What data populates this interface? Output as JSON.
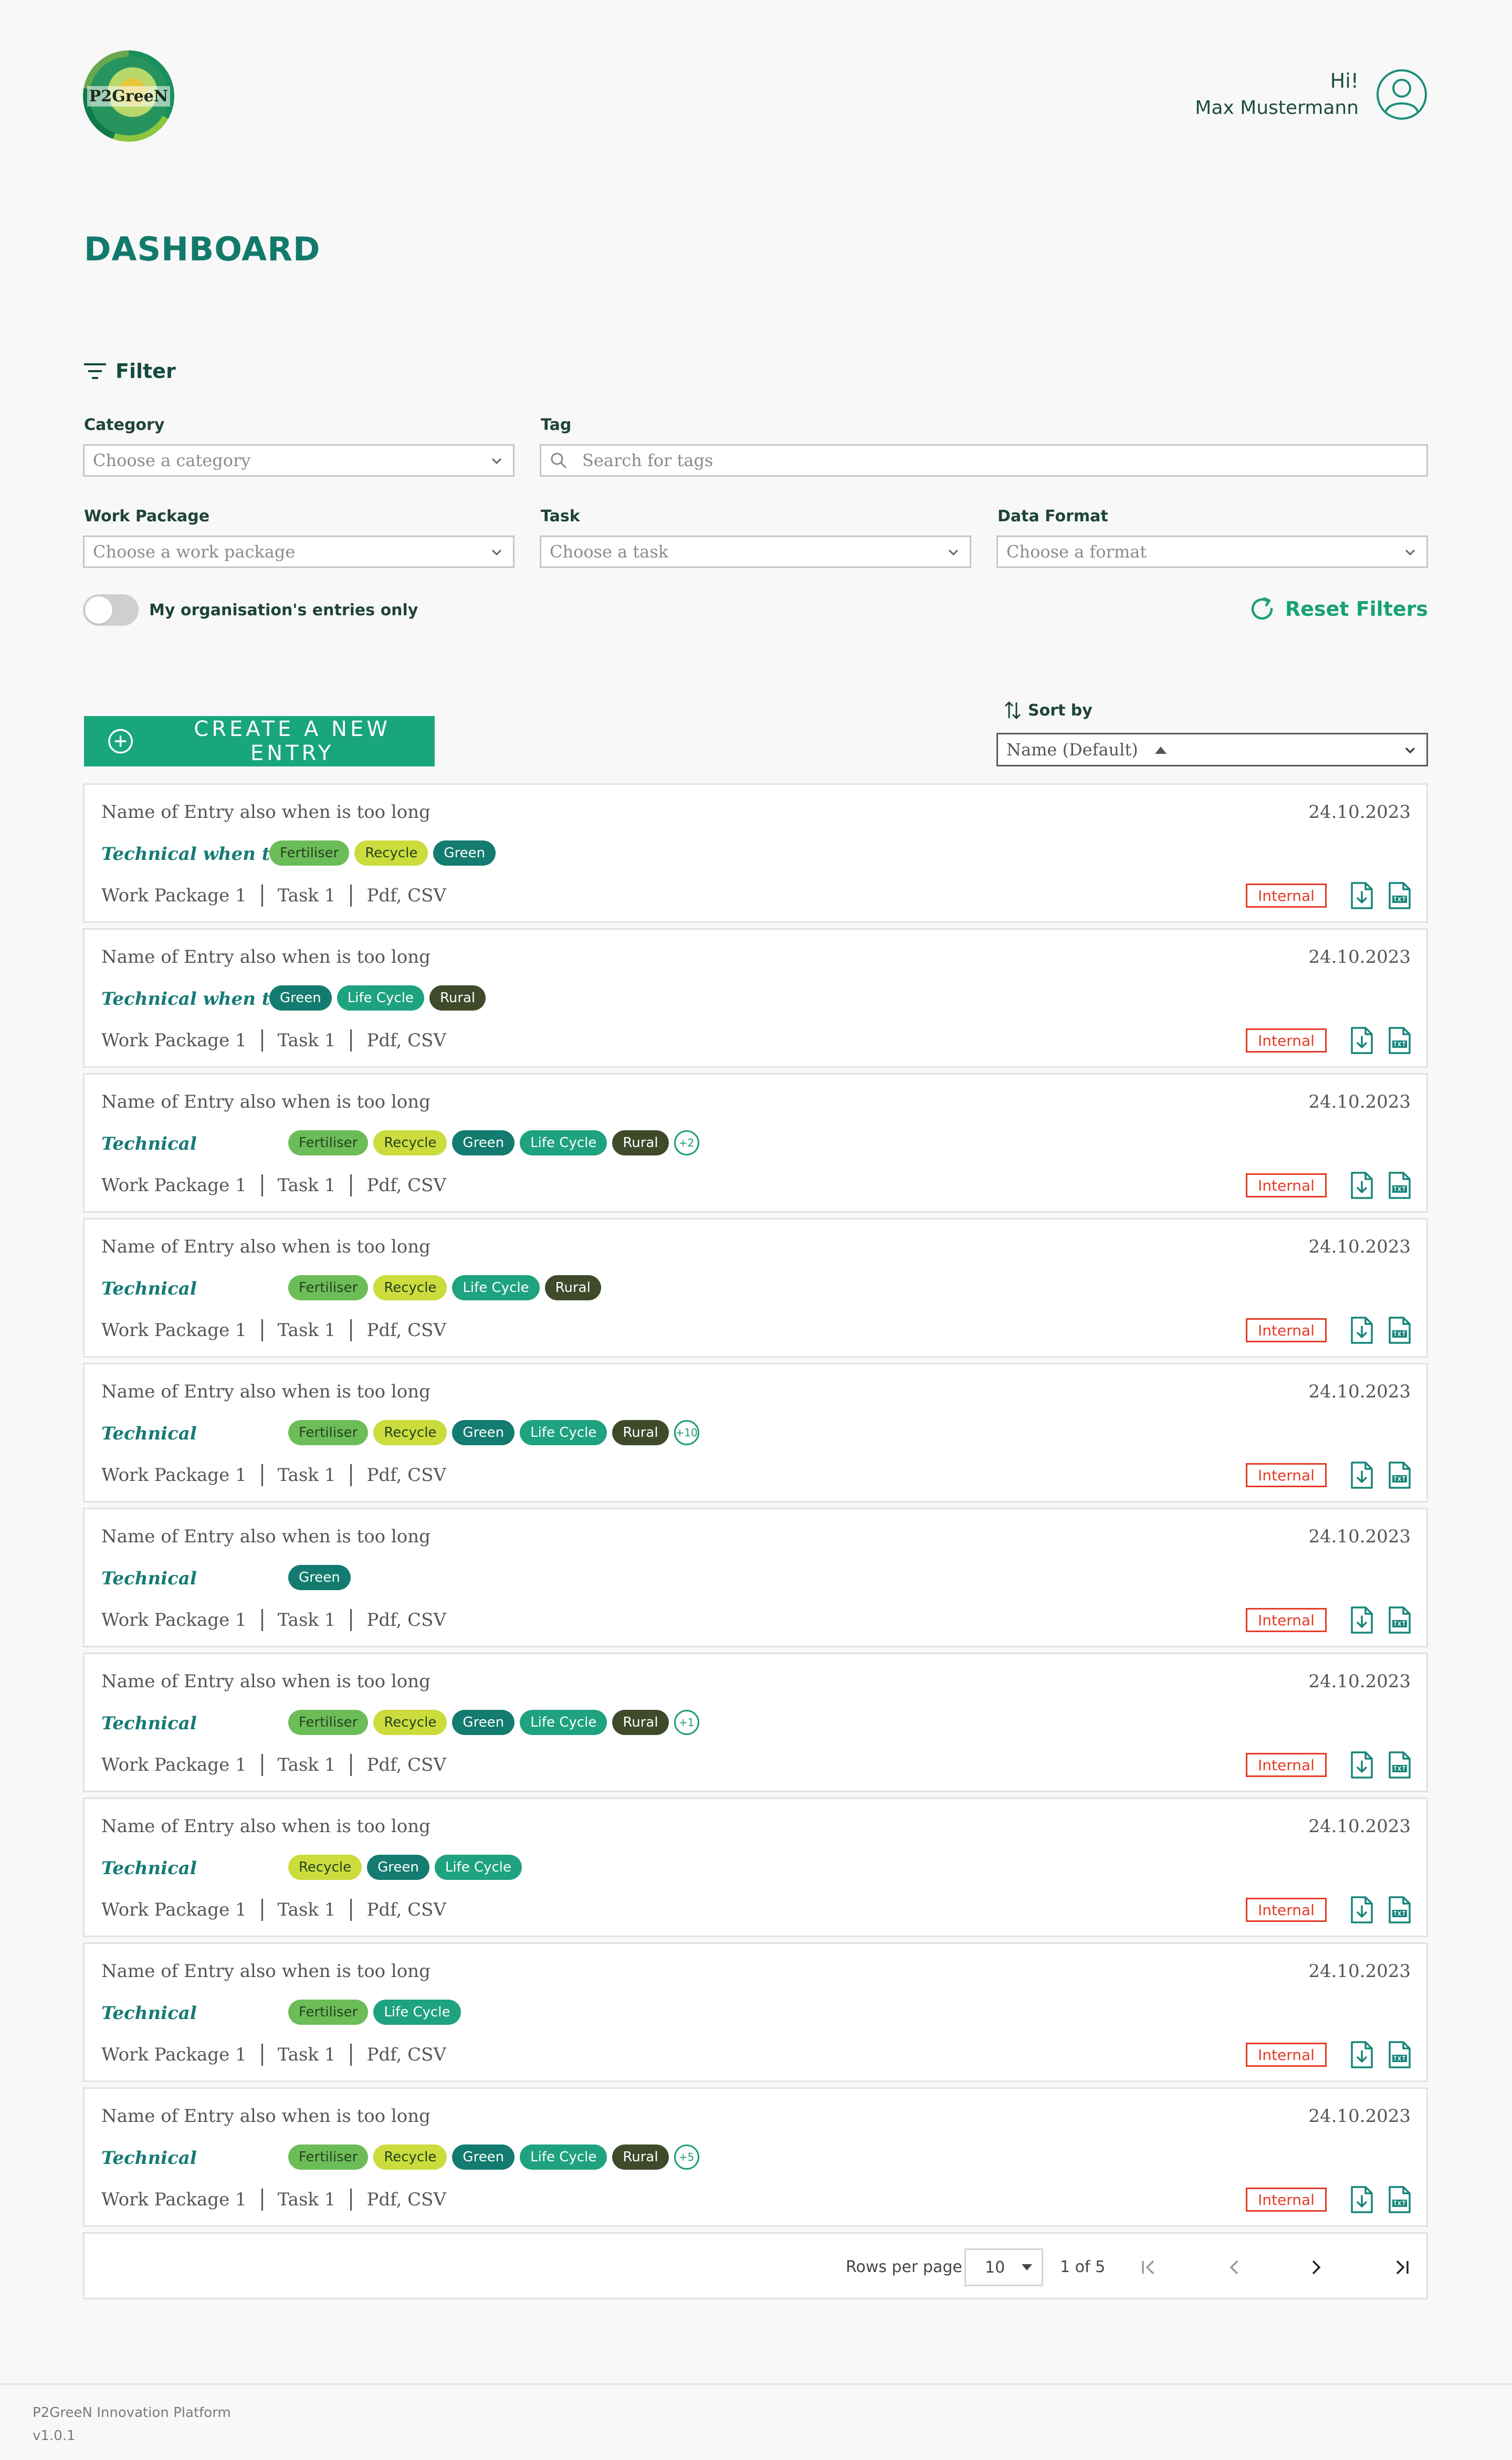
{
  "header": {
    "logo_text": "P2GreeN",
    "greeting": "Hi!",
    "user_name": "Max Mustermann",
    "page_title": "DASHBOARD"
  },
  "filter": {
    "title": "Filter",
    "category": {
      "label": "Category",
      "placeholder": "Choose a category"
    },
    "tag": {
      "label": "Tag",
      "placeholder": "Search for tags"
    },
    "work_package": {
      "label": "Work Package",
      "placeholder": "Choose a work package"
    },
    "task": {
      "label": "Task",
      "placeholder": "Choose a task"
    },
    "data_format": {
      "label": "Data Format",
      "placeholder": "Choose a format"
    },
    "toggle_label": "My organisation's entries only",
    "reset_label": "Reset Filters"
  },
  "actions": {
    "create_label": "CREATE A NEW ENTRY",
    "sort_label": "Sort by",
    "sort_value": "Name (Default)"
  },
  "colors": {
    "Fertiliser": "#6cbd58",
    "Recycle": "#cbdc3c",
    "Green": "#137b6f",
    "Life Cycle": "#1ea27f",
    "Rural": "#3e4a2a"
  },
  "entries": [
    {
      "title": "Name of Entry also when is too long",
      "date": "24.10.2023",
      "category": "Technical when too...",
      "tags": [
        "Fertiliser",
        "Recycle",
        "Green"
      ],
      "more": "",
      "work_package": "Work Package 1",
      "task": "Task 1",
      "formats": "Pdf, CSV",
      "visibility": "Internal"
    },
    {
      "title": "Name of Entry also when is too long",
      "date": "24.10.2023",
      "category": "Technical when too...",
      "tags": [
        "Green",
        "Life Cycle",
        "Rural"
      ],
      "more": "",
      "work_package": "Work Package 1",
      "task": "Task 1",
      "formats": "Pdf, CSV",
      "visibility": "Internal"
    },
    {
      "title": "Name of Entry also when is too long",
      "date": "24.10.2023",
      "category": "Technical",
      "tags": [
        "Fertiliser",
        "Recycle",
        "Green",
        "Life Cycle",
        "Rural"
      ],
      "more": "+2",
      "work_package": "Work Package 1",
      "task": "Task 1",
      "formats": "Pdf, CSV",
      "visibility": "Internal"
    },
    {
      "title": "Name of Entry also when is too long",
      "date": "24.10.2023",
      "category": "Technical",
      "tags": [
        "Fertiliser",
        "Recycle",
        "Life Cycle",
        "Rural"
      ],
      "more": "",
      "work_package": "Work Package 1",
      "task": "Task 1",
      "formats": "Pdf, CSV",
      "visibility": "Internal"
    },
    {
      "title": "Name of Entry also when is too long",
      "date": "24.10.2023",
      "category": "Technical",
      "tags": [
        "Fertiliser",
        "Recycle",
        "Green",
        "Life Cycle",
        "Rural"
      ],
      "more": "+10",
      "work_package": "Work Package 1",
      "task": "Task 1",
      "formats": "Pdf, CSV",
      "visibility": "Internal"
    },
    {
      "title": "Name of Entry also when is too long",
      "date": "24.10.2023",
      "category": "Technical",
      "tags": [
        "Green"
      ],
      "more": "",
      "work_package": "Work Package 1",
      "task": "Task 1",
      "formats": "Pdf, CSV",
      "visibility": "Internal"
    },
    {
      "title": "Name of Entry also when is too long",
      "date": "24.10.2023",
      "category": "Technical",
      "tags": [
        "Fertiliser",
        "Recycle",
        "Green",
        "Life Cycle",
        "Rural"
      ],
      "more": "+1",
      "work_package": "Work Package 1",
      "task": "Task 1",
      "formats": "Pdf, CSV",
      "visibility": "Internal"
    },
    {
      "title": "Name of Entry also when is too long",
      "date": "24.10.2023",
      "category": "Technical",
      "tags": [
        "Recycle",
        "Green",
        "Life Cycle"
      ],
      "more": "",
      "work_package": "Work Package 1",
      "task": "Task 1",
      "formats": "Pdf, CSV",
      "visibility": "Internal"
    },
    {
      "title": "Name of Entry also when is too long",
      "date": "24.10.2023",
      "category": "Technical",
      "tags": [
        "Fertiliser",
        "Life Cycle"
      ],
      "more": "",
      "work_package": "Work Package 1",
      "task": "Task 1",
      "formats": "Pdf, CSV",
      "visibility": "Internal"
    },
    {
      "title": "Name of Entry also when is too long",
      "date": "24.10.2023",
      "category": "Technical",
      "tags": [
        "Fertiliser",
        "Recycle",
        "Green",
        "Life Cycle",
        "Rural"
      ],
      "more": "+5",
      "work_package": "Work Package 1",
      "task": "Task 1",
      "formats": "Pdf, CSV",
      "visibility": "Internal"
    }
  ],
  "pagination": {
    "rows_label": "Rows per page",
    "rows_value": "10",
    "page_info": "1 of 5"
  },
  "footer": {
    "platform": "P2GreeN Innovation Platform",
    "version": "v1.0.1"
  }
}
